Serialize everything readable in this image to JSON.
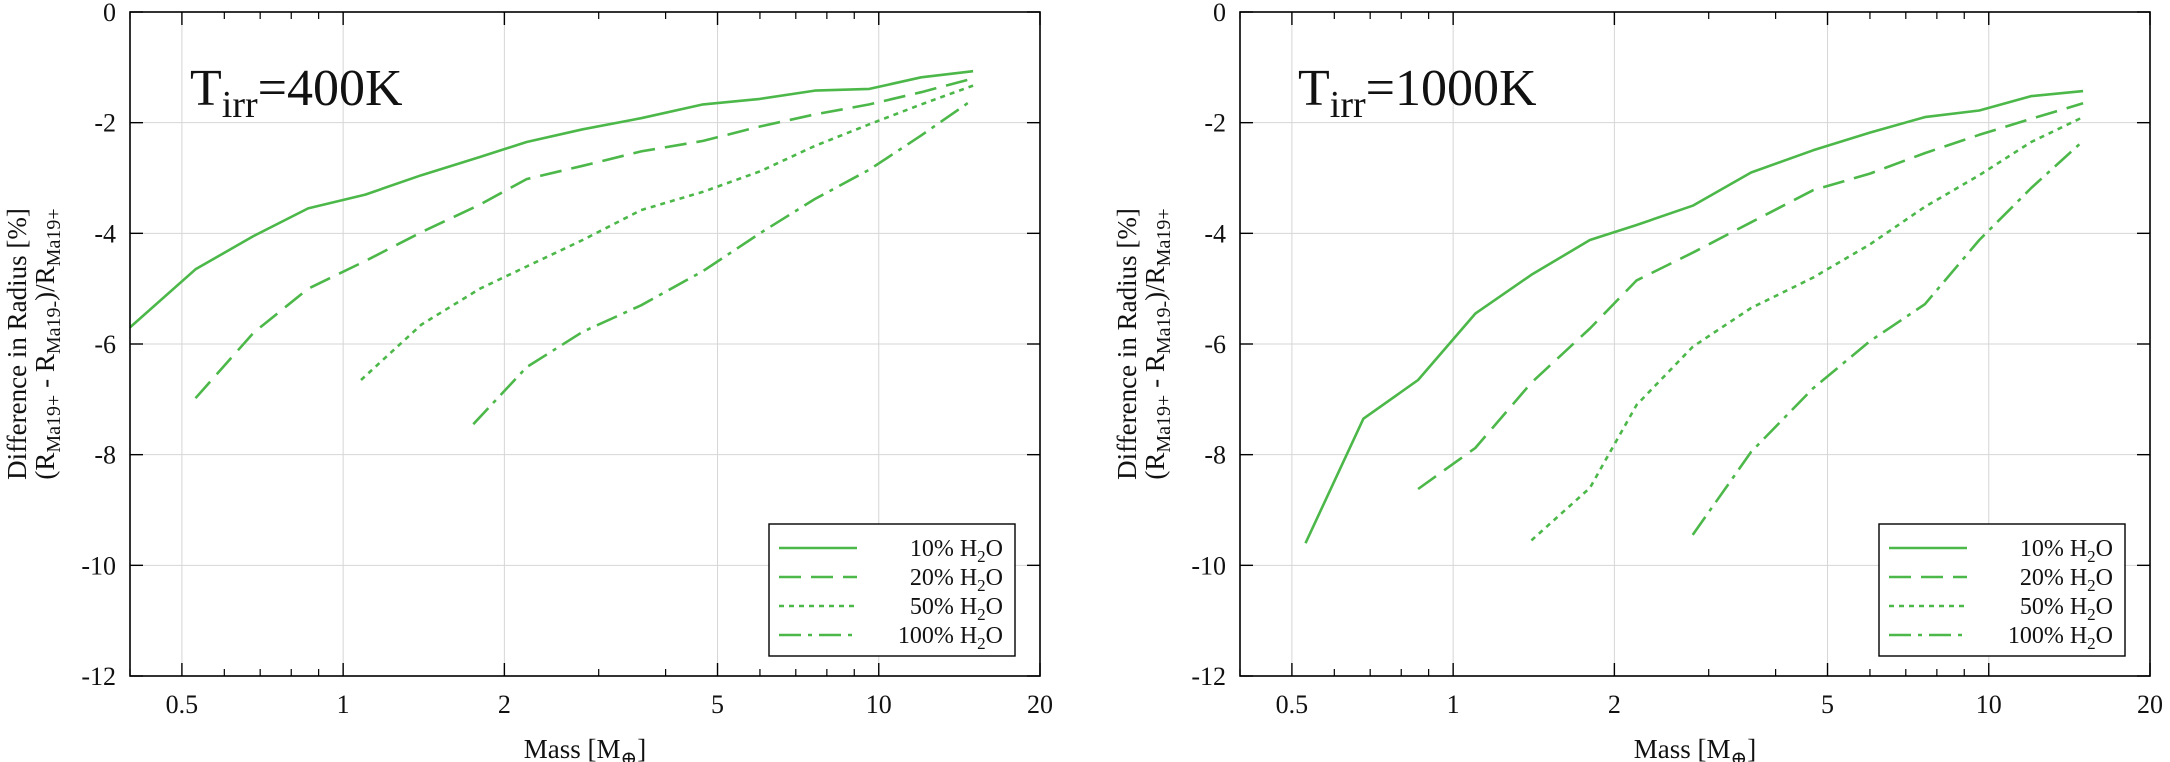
{
  "chart_data": [
    {
      "type": "line",
      "title": {
        "prefix": "T",
        "subscript": "irr",
        "suffix": "=400K"
      },
      "xlabel": "Mass [M⊕]",
      "ylabel_line1": "Difference in Radius [%]",
      "ylabel_line2": "(RMa19+ - RMa19-)/RMa19+",
      "xscale": "log",
      "xlim": [
        0.4,
        20
      ],
      "ylim": [
        -12,
        0
      ],
      "xticks": [
        0.5,
        1,
        2,
        5,
        10,
        20
      ],
      "xtick_labels": [
        "0.5",
        "1",
        "2",
        "5",
        "10",
        "20"
      ],
      "yticks": [
        0,
        -2,
        -4,
        -6,
        -8,
        -10,
        -12
      ],
      "ytick_labels": [
        "0",
        "-2",
        "-4",
        "-6",
        "-8",
        "-10",
        "-12"
      ],
      "grid": true,
      "legend_position": "bottom-right",
      "series": [
        {
          "name": "10% H2O",
          "label_prefix": "10% H",
          "label_sub": "2",
          "label_suffix": "O",
          "style": "solid",
          "x": [
            0.4,
            0.53,
            0.68,
            0.86,
            1.1,
            1.4,
            1.8,
            2.2,
            2.8,
            3.6,
            4.7,
            6.0,
            7.6,
            9.6,
            12.0,
            15.0
          ],
          "y": [
            -5.7,
            -4.65,
            -4.05,
            -3.55,
            -3.3,
            -2.95,
            -2.62,
            -2.35,
            -2.12,
            -1.92,
            -1.67,
            -1.57,
            -1.42,
            -1.39,
            -1.18,
            -1.07
          ]
        },
        {
          "name": "20% H2O",
          "label_prefix": "20% H",
          "label_sub": "2",
          "label_suffix": "O",
          "style": "dashed",
          "x": [
            0.53,
            0.68,
            0.86,
            1.1,
            1.4,
            1.8,
            2.2,
            2.8,
            3.6,
            4.7,
            6.0,
            7.6,
            9.6,
            12.0,
            15.0
          ],
          "y": [
            -6.98,
            -5.8,
            -5.0,
            -4.5,
            -3.98,
            -3.48,
            -3.02,
            -2.78,
            -2.52,
            -2.33,
            -2.07,
            -1.85,
            -1.67,
            -1.45,
            -1.2
          ]
        },
        {
          "name": "50% H2O",
          "label_prefix": "50% H",
          "label_sub": "2",
          "label_suffix": "O",
          "style": "dotted",
          "x": [
            1.08,
            1.4,
            1.8,
            2.2,
            2.8,
            3.6,
            4.7,
            6.0,
            7.6,
            9.6,
            12.0,
            15.0
          ],
          "y": [
            -6.65,
            -5.65,
            -5.0,
            -4.6,
            -4.12,
            -3.58,
            -3.25,
            -2.88,
            -2.42,
            -2.03,
            -1.67,
            -1.33
          ]
        },
        {
          "name": "100% H2O",
          "label_prefix": "100% H",
          "label_sub": "2",
          "label_suffix": "O",
          "style": "dashdot",
          "x": [
            1.75,
            2.2,
            2.8,
            3.6,
            4.7,
            6.0,
            7.6,
            9.6,
            12.0,
            15.0
          ],
          "y": [
            -7.45,
            -6.42,
            -5.78,
            -5.3,
            -4.68,
            -4.0,
            -3.38,
            -2.85,
            -2.23,
            -1.58
          ]
        }
      ]
    },
    {
      "type": "line",
      "title": {
        "prefix": "T",
        "subscript": "irr",
        "suffix": "=1000K"
      },
      "xlabel": "Mass [M⊕]",
      "ylabel_line1": "Difference in Radius [%]",
      "ylabel_line2": "(RMa19+ - RMa19-)/RMa19+",
      "xscale": "log",
      "xlim": [
        0.4,
        20
      ],
      "ylim": [
        -12,
        0
      ],
      "xticks": [
        0.5,
        1,
        2,
        5,
        10,
        20
      ],
      "xtick_labels": [
        "0.5",
        "1",
        "2",
        "5",
        "10",
        "20"
      ],
      "yticks": [
        0,
        -2,
        -4,
        -6,
        -8,
        -10,
        -12
      ],
      "ytick_labels": [
        "0",
        "-2",
        "-4",
        "-6",
        "-8",
        "-10",
        "-12"
      ],
      "grid": true,
      "legend_position": "bottom-right",
      "series": [
        {
          "name": "10% H2O",
          "label_prefix": "10% H",
          "label_sub": "2",
          "label_suffix": "O",
          "style": "solid",
          "x": [
            0.53,
            0.68,
            0.86,
            1.1,
            1.4,
            1.8,
            2.2,
            2.8,
            3.6,
            4.7,
            6.0,
            7.6,
            9.6,
            12.0,
            15.0
          ],
          "y": [
            -9.6,
            -7.35,
            -6.65,
            -5.45,
            -4.75,
            -4.12,
            -3.85,
            -3.5,
            -2.9,
            -2.5,
            -2.18,
            -1.9,
            -1.78,
            -1.52,
            -1.43
          ]
        },
        {
          "name": "20% H2O",
          "label_prefix": "20% H",
          "label_sub": "2",
          "label_suffix": "O",
          "style": "dashed",
          "x": [
            0.86,
            1.1,
            1.4,
            1.8,
            2.2,
            2.8,
            3.6,
            4.7,
            6.0,
            7.6,
            9.6,
            12.0,
            15.0
          ],
          "y": [
            -8.62,
            -7.88,
            -6.7,
            -5.72,
            -4.85,
            -4.35,
            -3.8,
            -3.22,
            -2.92,
            -2.55,
            -2.22,
            -1.93,
            -1.65
          ]
        },
        {
          "name": "50% H2O",
          "label_prefix": "50% H",
          "label_sub": "2",
          "label_suffix": "O",
          "style": "dotted",
          "x": [
            1.4,
            1.8,
            2.2,
            2.8,
            3.6,
            4.7,
            6.0,
            7.6,
            9.6,
            12.0,
            15.0
          ],
          "y": [
            -9.55,
            -8.6,
            -7.1,
            -6.05,
            -5.35,
            -4.8,
            -4.2,
            -3.52,
            -2.95,
            -2.35,
            -1.9
          ]
        },
        {
          "name": "100% H2O",
          "label_prefix": "100% H",
          "label_sub": "2",
          "label_suffix": "O",
          "style": "dashdot",
          "x": [
            2.8,
            3.6,
            4.7,
            6.0,
            7.6,
            9.6,
            12.0,
            15.0
          ],
          "y": [
            -9.45,
            -7.95,
            -6.8,
            -5.95,
            -5.28,
            -4.12,
            -3.18,
            -2.33
          ]
        }
      ]
    }
  ],
  "colors": {
    "line": "#4db84a",
    "grid": "#d6d6d6",
    "axis": "#000000"
  }
}
